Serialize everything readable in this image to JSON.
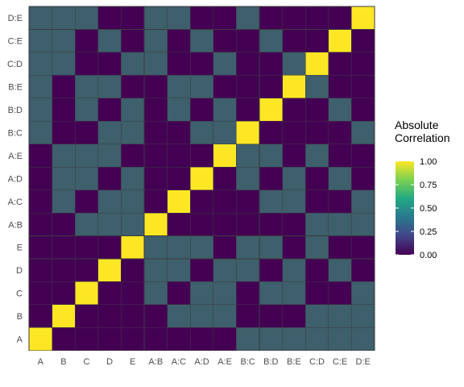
{
  "chart_data": {
    "type": "heatmap",
    "title": "",
    "xlabel": "",
    "ylabel": "",
    "categories": [
      "A",
      "B",
      "C",
      "D",
      "E",
      "A:B",
      "A:C",
      "A:D",
      "A:E",
      "B:C",
      "B:D",
      "B:E",
      "C:D",
      "C:E",
      "D:E"
    ],
    "cell_values": [
      0,
      0.333,
      1
    ],
    "matrix": [
      [
        2,
        0,
        0,
        0,
        0,
        0,
        0,
        0,
        0,
        1,
        1,
        1,
        1,
        1,
        1
      ],
      [
        0,
        2,
        0,
        0,
        0,
        0,
        1,
        1,
        1,
        0,
        0,
        0,
        1,
        1,
        1
      ],
      [
        0,
        0,
        2,
        0,
        0,
        1,
        0,
        1,
        1,
        0,
        1,
        1,
        0,
        0,
        1
      ],
      [
        0,
        0,
        0,
        2,
        0,
        1,
        1,
        0,
        1,
        1,
        0,
        1,
        0,
        1,
        0
      ],
      [
        0,
        0,
        0,
        0,
        2,
        1,
        1,
        1,
        0,
        1,
        1,
        0,
        1,
        0,
        0
      ],
      [
        0,
        0,
        1,
        1,
        1,
        2,
        0,
        0,
        0,
        0,
        0,
        0,
        1,
        1,
        1
      ],
      [
        0,
        1,
        0,
        1,
        1,
        0,
        2,
        0,
        0,
        0,
        1,
        1,
        0,
        0,
        1
      ],
      [
        0,
        1,
        1,
        0,
        1,
        0,
        0,
        2,
        0,
        1,
        0,
        1,
        0,
        1,
        0
      ],
      [
        0,
        1,
        1,
        1,
        0,
        0,
        0,
        0,
        2,
        1,
        1,
        0,
        1,
        0,
        0
      ],
      [
        1,
        0,
        0,
        1,
        1,
        0,
        0,
        1,
        1,
        2,
        0,
        0,
        0,
        0,
        1
      ],
      [
        1,
        0,
        1,
        0,
        1,
        0,
        1,
        0,
        1,
        0,
        2,
        0,
        0,
        1,
        0
      ],
      [
        1,
        0,
        1,
        1,
        0,
        0,
        1,
        1,
        0,
        0,
        0,
        2,
        1,
        0,
        0
      ],
      [
        1,
        1,
        0,
        0,
        1,
        1,
        0,
        0,
        1,
        0,
        0,
        1,
        2,
        0,
        0
      ],
      [
        1,
        1,
        0,
        1,
        0,
        1,
        0,
        1,
        0,
        0,
        1,
        0,
        0,
        2,
        0
      ],
      [
        1,
        1,
        1,
        0,
        0,
        1,
        1,
        0,
        0,
        1,
        0,
        0,
        0,
        0,
        2
      ]
    ],
    "legend": {
      "title_lines": [
        "Absolute",
        "Correlation"
      ],
      "placement": "right",
      "range": [
        0,
        1
      ],
      "ticks": [
        {
          "value": 0,
          "label": "0.00"
        },
        {
          "value": 0.25,
          "label": "0.25"
        },
        {
          "value": 0.5,
          "label": "0.50"
        },
        {
          "value": 0.75,
          "label": "0.75"
        },
        {
          "value": 1,
          "label": "1.00"
        }
      ]
    },
    "colors": {
      "low": "#440154",
      "mid": "#3e5f6c",
      "high": "#fde725",
      "gradient": [
        "#440154",
        "#414487",
        "#2a788e",
        "#22a884",
        "#7ad151",
        "#fde725"
      ]
    },
    "grid": false
  }
}
